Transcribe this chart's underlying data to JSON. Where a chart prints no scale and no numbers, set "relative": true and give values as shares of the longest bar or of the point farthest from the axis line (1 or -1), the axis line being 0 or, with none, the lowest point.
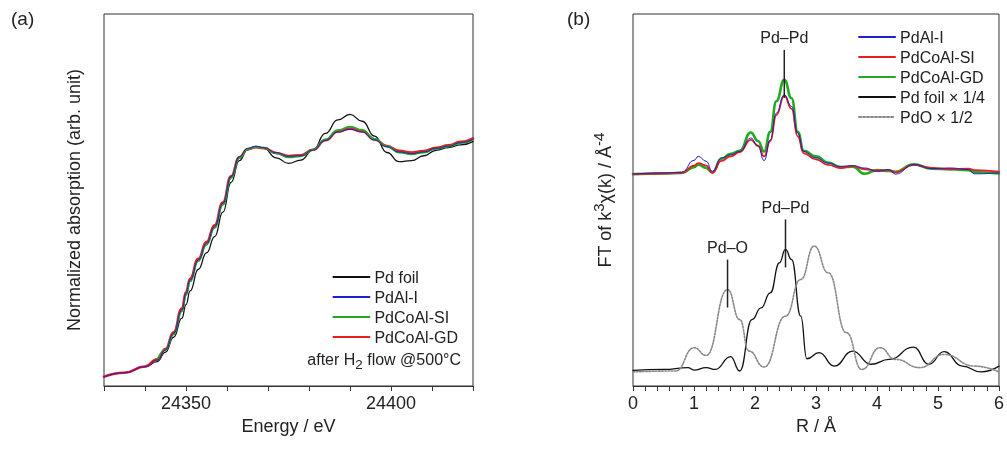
{
  "chart_data": [
    {
      "type": "line",
      "relative": true,
      "title": "(a)",
      "xlabel": "Energy / eV",
      "ylabel": "Normalized absorption (arb. unit)",
      "xlim": [
        24330,
        24420
      ],
      "xticks": [
        {
          "value": 24330,
          "label": null
        },
        {
          "value": 24340,
          "label": null
        },
        24350,
        {
          "value": 24360,
          "label": null
        },
        {
          "value": 24370,
          "label": null
        },
        {
          "value": 24380,
          "label": null
        },
        {
          "value": 24390,
          "label": null
        },
        24400,
        {
          "value": 24410,
          "label": null
        },
        {
          "value": 24420,
          "label": null
        }
      ],
      "legend": "bottom right",
      "marker": "none",
      "annotations": [
        "after H$_{2}$ flow @500°C"
      ],
      "x": [
        24330,
        24335,
        24340,
        24343,
        24345,
        24347,
        24349,
        24350,
        24351,
        24353,
        24355,
        24357,
        24359,
        24361,
        24363,
        24365,
        24367,
        24369,
        24372,
        24375,
        24378,
        24381,
        24384,
        24387,
        24390,
        24393,
        24396,
        24399,
        24402,
        24405,
        24408,
        24411,
        24414,
        24417,
        24420
      ],
      "series": [
        {
          "name": "Pd foil",
          "color": "#111111",
          "values": [
            0.034,
            0.049,
            0.071,
            0.09,
            0.125,
            0.18,
            0.25,
            0.3,
            0.35,
            0.43,
            0.49,
            0.55,
            0.64,
            0.75,
            0.83,
            0.87,
            0.882,
            0.875,
            0.84,
            0.82,
            0.832,
            0.87,
            0.93,
            0.98,
            1.0,
            0.975,
            0.92,
            0.86,
            0.826,
            0.83,
            0.848,
            0.868,
            0.878,
            0.888,
            0.9
          ]
        },
        {
          "name": "PdAl-I",
          "color": "#1f1fd0",
          "values": [
            0.034,
            0.049,
            0.071,
            0.096,
            0.133,
            0.194,
            0.28,
            0.341,
            0.39,
            0.464,
            0.525,
            0.587,
            0.673,
            0.771,
            0.844,
            0.875,
            0.883,
            0.878,
            0.859,
            0.846,
            0.848,
            0.869,
            0.905,
            0.935,
            0.945,
            0.935,
            0.906,
            0.881,
            0.862,
            0.856,
            0.862,
            0.875,
            0.883,
            0.896,
            0.908
          ]
        },
        {
          "name": "PdCoAl-SI",
          "color": "#1faa1f",
          "values": [
            null,
            null,
            null,
            0.096,
            0.133,
            0.19,
            0.275,
            0.335,
            0.385,
            0.46,
            0.52,
            0.582,
            0.668,
            0.766,
            0.84,
            0.872,
            0.881,
            0.877,
            0.857,
            0.842,
            0.846,
            0.87,
            0.908,
            0.942,
            0.955,
            0.943,
            0.91,
            0.882,
            0.86,
            0.853,
            0.86,
            0.873,
            0.882,
            0.895,
            0.906
          ]
        },
        {
          "name": "PdCoAl-GD",
          "color": "#e81e1e",
          "values": [
            0.034,
            0.049,
            0.072,
            0.098,
            0.136,
            0.198,
            0.285,
            0.345,
            0.395,
            0.468,
            0.53,
            0.592,
            0.676,
            0.772,
            0.842,
            0.872,
            0.879,
            0.876,
            0.858,
            0.847,
            0.85,
            0.87,
            0.905,
            0.937,
            0.948,
            0.938,
            0.908,
            0.884,
            0.866,
            0.86,
            0.865,
            0.877,
            0.886,
            0.899,
            0.912
          ]
        }
      ]
    },
    {
      "type": "line",
      "relative": true,
      "title": "(b)",
      "xlabel": "R / Å",
      "ylabel": "FT of k$^{3}$χ(k) / Å$^{-4}$",
      "xlim": [
        0,
        6
      ],
      "xticks": [
        0,
        {
          "value": 0.2,
          "label": null
        },
        {
          "value": 0.4,
          "label": null
        },
        {
          "value": 0.6,
          "label": null
        },
        {
          "value": 0.8,
          "label": null
        },
        1,
        {
          "value": 1.2,
          "label": null
        },
        {
          "value": 1.4,
          "label": null
        },
        {
          "value": 1.6,
          "label": null
        },
        {
          "value": 1.8,
          "label": null
        },
        2,
        {
          "value": 2.2,
          "label": null
        },
        {
          "value": 2.4,
          "label": null
        },
        {
          "value": 2.6,
          "label": null
        },
        {
          "value": 2.8,
          "label": null
        },
        3,
        {
          "value": 3.2,
          "label": null
        },
        {
          "value": 3.4,
          "label": null
        },
        {
          "value": 3.6,
          "label": null
        },
        {
          "value": 3.8,
          "label": null
        },
        4,
        {
          "value": 4.2,
          "label": null
        },
        {
          "value": 4.4,
          "label": null
        },
        {
          "value": 4.6,
          "label": null
        },
        {
          "value": 4.8,
          "label": null
        },
        5,
        {
          "value": 5.2,
          "label": null
        },
        {
          "value": 5.4,
          "label": null
        },
        {
          "value": 5.6,
          "label": null
        },
        {
          "value": 5.8,
          "label": null
        },
        6
      ],
      "legend": "top right",
      "marker": "none",
      "annotations": [
        {
          "text": "Pd–Pd",
          "x": 2.48,
          "y": 1.0
        },
        {
          "text": "Pd–Pd",
          "x": 2.5,
          "y": 0.446
        },
        {
          "text": "Pd–O",
          "x": 1.55,
          "y": 0.315
        }
      ],
      "series": [
        {
          "name": "PdAl-I",
          "color": "#1f1fd0",
          "x": [
            0,
            0.5,
            0.8,
            1.0,
            1.07,
            1.2,
            1.3,
            1.45,
            1.6,
            1.75,
            1.93,
            2.05,
            2.15,
            2.25,
            2.35,
            2.48,
            2.6,
            2.7,
            2.8,
            3.0,
            3.2,
            3.4,
            3.6,
            3.8,
            4.0,
            4.2,
            4.3,
            4.6,
            4.9,
            5.2,
            5.5,
            5.6,
            6.0
          ],
          "values": [
            0.692,
            0.696,
            0.698,
            0.737,
            0.75,
            0.734,
            0.701,
            0.745,
            0.755,
            0.766,
            0.81,
            0.783,
            0.736,
            0.804,
            0.891,
            0.951,
            0.913,
            0.826,
            0.766,
            0.745,
            0.728,
            0.717,
            0.72,
            0.712,
            0.701,
            0.707,
            0.692,
            0.723,
            0.71,
            0.712,
            0.707,
            0.693,
            0.696
          ]
        },
        {
          "name": "PdCoAl-SI",
          "color": "#e81e1e",
          "x": [
            0,
            0.5,
            0.8,
            1.0,
            1.07,
            1.2,
            1.3,
            1.45,
            1.6,
            1.75,
            1.93,
            2.05,
            2.15,
            2.25,
            2.35,
            2.48,
            2.6,
            2.7,
            2.8,
            3.0,
            3.2,
            3.4,
            3.6,
            3.8,
            4.0,
            4.2,
            4.3,
            4.6,
            4.9,
            5.2,
            5.5,
            5.6,
            6.0
          ],
          "values": [
            0.692,
            0.694,
            0.696,
            0.72,
            0.728,
            0.72,
            0.696,
            0.735,
            0.75,
            0.764,
            0.804,
            0.785,
            0.75,
            0.8,
            0.885,
            0.948,
            0.905,
            0.815,
            0.76,
            0.74,
            0.722,
            0.712,
            0.718,
            0.708,
            0.704,
            0.705,
            0.698,
            0.722,
            0.712,
            0.708,
            0.71,
            0.705,
            0.7
          ]
        },
        {
          "name": "PdCoAl-GD",
          "color": "#1faa1f",
          "x": [
            0,
            0.5,
            0.8,
            1.0,
            1.07,
            1.2,
            1.3,
            1.45,
            1.6,
            1.75,
            1.93,
            2.05,
            2.15,
            2.25,
            2.35,
            2.48,
            2.6,
            2.7,
            2.8,
            3.0,
            3.2,
            3.4,
            3.6,
            3.8,
            4.0,
            4.2,
            4.3,
            4.6,
            4.9,
            5.2,
            5.5,
            5.6,
            6.0
          ],
          "values": [
            0.692,
            0.694,
            0.696,
            0.715,
            0.723,
            0.712,
            0.698,
            0.742,
            0.758,
            0.768,
            0.828,
            0.8,
            0.766,
            0.83,
            0.93,
            1.0,
            0.94,
            0.83,
            0.768,
            0.75,
            0.73,
            0.715,
            0.716,
            0.693,
            0.705,
            0.702,
            0.7,
            0.724,
            0.71,
            0.708,
            0.705,
            0.698,
            0.694
          ]
        },
        {
          "name": "Pd foil × 1/4",
          "color": "#111111",
          "x": [
            0,
            0.5,
            0.9,
            1.0,
            1.2,
            1.35,
            1.6,
            1.75,
            1.95,
            2.1,
            2.25,
            2.4,
            2.5,
            2.6,
            2.75,
            2.85,
            3.05,
            3.3,
            3.6,
            3.9,
            4.2,
            4.6,
            4.85,
            5.1,
            5.4,
            5.7,
            6.0
          ],
          "values": [
            0.051,
            0.054,
            0.06,
            0.052,
            0.06,
            0.054,
            0.096,
            0.049,
            0.217,
            0.255,
            0.304,
            0.402,
            0.446,
            0.413,
            0.228,
            0.089,
            0.109,
            0.065,
            0.114,
            0.071,
            0.087,
            0.127,
            0.071,
            0.112,
            0.065,
            0.046,
            0.065
          ]
        },
        {
          "name": "PdO × 1/2",
          "color": "#888888",
          "line_style": "dotted",
          "x": [
            0,
            0.7,
            1.0,
            1.2,
            1.55,
            1.75,
            1.9,
            2.15,
            2.5,
            2.75,
            2.97,
            3.2,
            3.5,
            3.75,
            4.05,
            4.3,
            4.7,
            5.1,
            5.6,
            6.0
          ],
          "values": [
            0.046,
            0.049,
            0.125,
            0.1,
            0.315,
            0.217,
            0.114,
            0.062,
            0.228,
            0.348,
            0.457,
            0.37,
            0.174,
            0.054,
            0.125,
            0.087,
            0.06,
            0.103,
            0.065,
            0.046
          ]
        }
      ]
    }
  ]
}
